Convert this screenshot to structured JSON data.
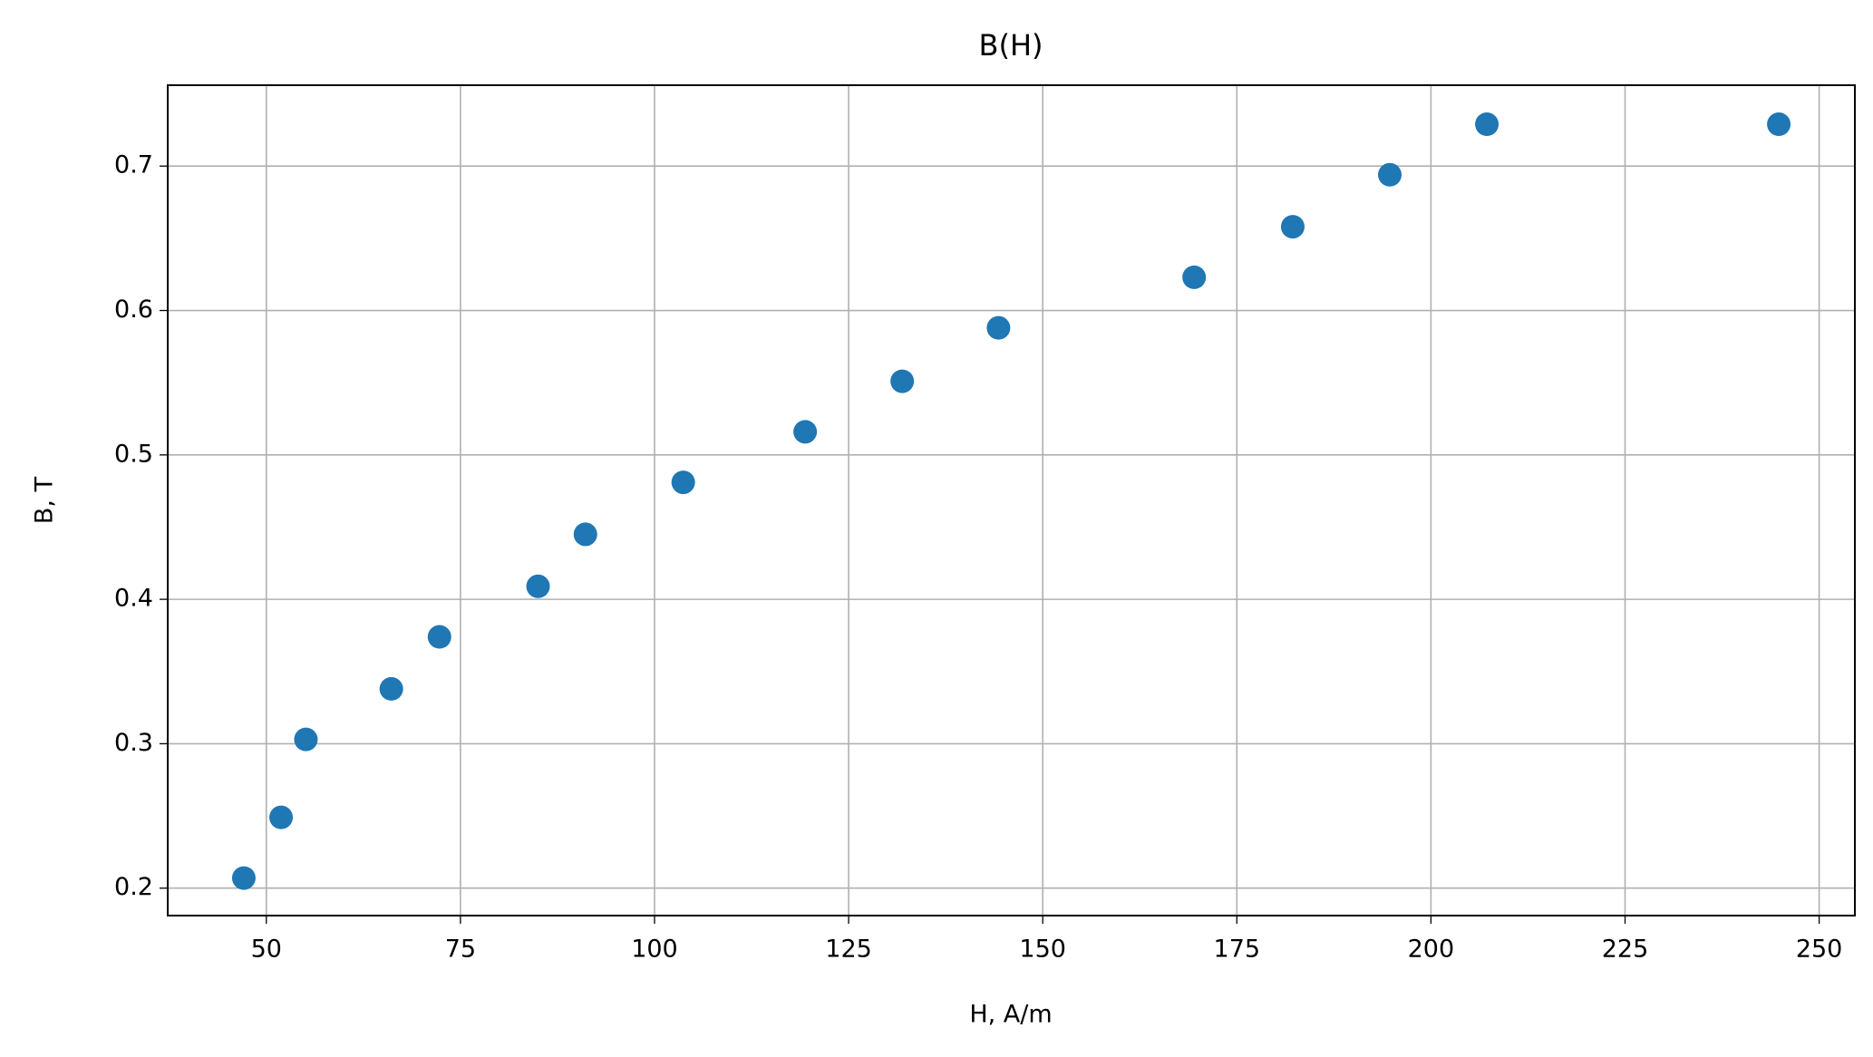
{
  "chart_data": {
    "type": "scatter",
    "title": "B(H)",
    "x_label": "H, A/m",
    "y_label": "B, T",
    "x": [
      47.1,
      51.9,
      55.1,
      66.1,
      72.3,
      85.0,
      91.1,
      103.7,
      119.4,
      131.9,
      144.3,
      169.5,
      182.2,
      194.7,
      207.2,
      244.8
    ],
    "values": [
      0.207,
      0.249,
      0.303,
      0.338,
      0.374,
      0.409,
      0.445,
      0.481,
      0.516,
      0.551,
      0.588,
      0.623,
      0.658,
      0.694,
      0.729,
      0.729
    ],
    "color": "#1f77b4",
    "xlim": [
      37.3,
      254.6
    ],
    "xticks": [
      50,
      75,
      100,
      125,
      150,
      175,
      200,
      225,
      250
    ],
    "ylim": [
      0.181,
      0.756
    ],
    "yticks": [
      0.2,
      0.3,
      0.4,
      0.5,
      0.6,
      0.7
    ],
    "grid": true
  }
}
